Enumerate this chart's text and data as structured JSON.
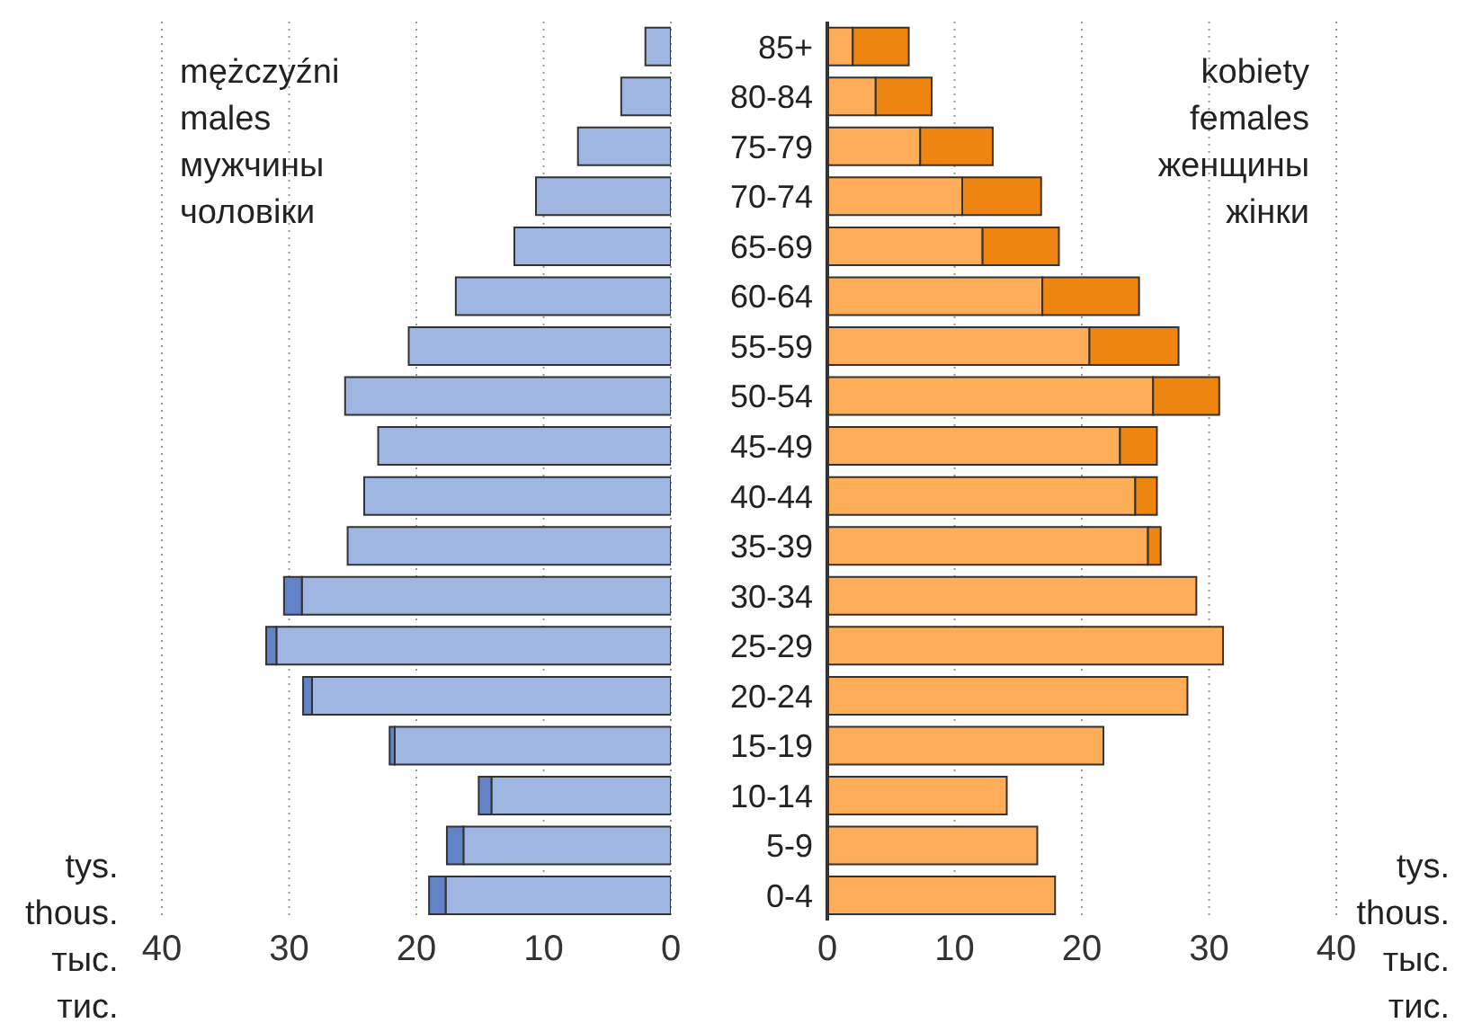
{
  "chart_data": [
    {
      "type": "bar",
      "orientation": "horizontal",
      "stacked": true,
      "title": "mężczyźni\nmales\nмужчины\nчоловіки",
      "xlabel": "tys.\nthous.\nтыс.\nтис.",
      "series": [
        {
          "color": "#a0b6e2",
          "values": [
            2.0,
            3.9,
            7.3,
            10.6,
            12.3,
            16.9,
            20.6,
            25.6,
            23.0,
            24.1,
            25.4,
            29.0,
            31.0,
            28.2,
            21.7,
            14.1,
            16.3,
            17.7
          ]
        },
        {
          "color": "#6283c8",
          "values": [
            null,
            null,
            null,
            null,
            null,
            null,
            null,
            null,
            null,
            null,
            null,
            1.4,
            0.8,
            0.7,
            0.4,
            1.0,
            1.3,
            1.3
          ]
        }
      ],
      "xlim": [
        40,
        0
      ],
      "xticks": [
        0,
        10,
        20,
        30,
        40
      ],
      "grid": "x",
      "tick_labels": "x",
      "legend": false
    },
    {
      "type": "bar",
      "orientation": "horizontal",
      "stacked": true,
      "title": "kobiety\nfemales\nженщины\nжінки",
      "xlabel": "tys.\nthous.\nтыс.\nтис.",
      "categories": [
        "85+",
        "80-84",
        "75-79",
        "70-74",
        "65-69",
        "60-64",
        "55-59",
        "50-54",
        "45-49",
        "40-44",
        "35-39",
        "30-34",
        "25-29",
        "20-24",
        "15-19",
        "10-14",
        "5-9",
        "0-4"
      ],
      "series": [
        {
          "color": "#ffad58",
          "values": [
            2.0,
            3.8,
            7.3,
            10.6,
            12.2,
            16.9,
            20.6,
            25.6,
            23.0,
            24.2,
            25.2,
            29.0,
            31.1,
            28.3,
            21.7,
            14.1,
            16.5,
            17.9
          ]
        },
        {
          "color": "#ee8510",
          "values": [
            4.4,
            4.4,
            5.7,
            6.2,
            6.0,
            7.6,
            7.0,
            5.2,
            2.9,
            1.7,
            1.0,
            null,
            null,
            null,
            null,
            null,
            null,
            null
          ]
        }
      ],
      "xlim": [
        0,
        40
      ],
      "xticks": [
        0,
        10,
        20,
        30,
        40
      ],
      "grid": "x",
      "legend": false
    }
  ]
}
